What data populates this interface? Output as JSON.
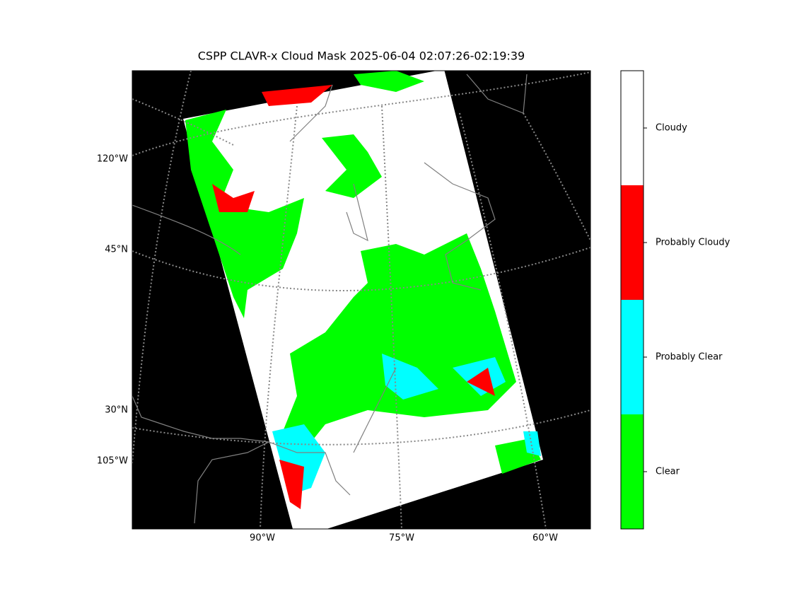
{
  "title": "CSPP CLAVR-x Cloud Mask 2025-06-04 02:07:26-02:19:39",
  "map": {
    "left_labels": [
      "120°W",
      "45°N",
      "30°N",
      "105°W"
    ],
    "bottom_labels": [
      "90°W",
      "75°W",
      "60°W"
    ]
  },
  "colorbar": {
    "classes": [
      {
        "label": "Clear",
        "color": "#00ff00"
      },
      {
        "label": "Probably Clear",
        "color": "#00ffff"
      },
      {
        "label": "Probably Cloudy",
        "color": "#ff0000"
      },
      {
        "label": "Cloudy",
        "color": "#ffffff"
      }
    ]
  }
}
